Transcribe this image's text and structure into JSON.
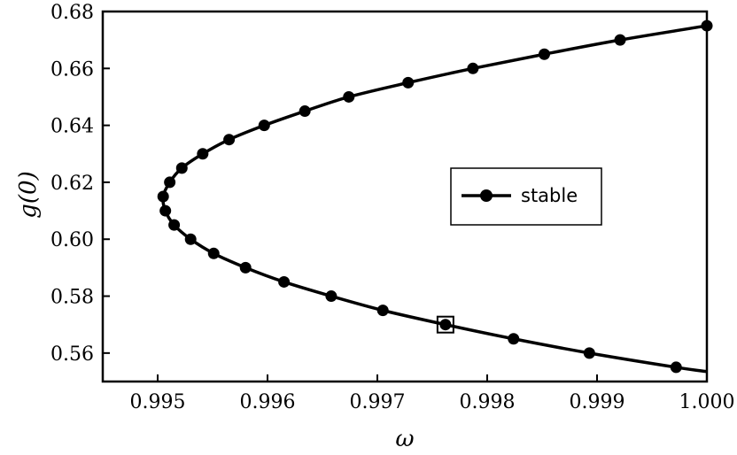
{
  "chart_data": {
    "type": "line",
    "xlabel": "ω",
    "ylabel": "g(0)",
    "xlim": [
      0.9945,
      1.0
    ],
    "ylim": [
      0.55,
      0.68
    ],
    "xticks": [
      "0.995",
      "0.996",
      "0.997",
      "0.998",
      "0.999",
      "1.000"
    ],
    "yticks": [
      "0.56",
      "0.58",
      "0.60",
      "0.62",
      "0.64",
      "0.66",
      "0.68"
    ],
    "grid": false,
    "legend_position": "center-right",
    "series": [
      {
        "name": "stable",
        "color": "#000000",
        "marker": "circle",
        "points": [
          [
            1.0,
            0.675
          ],
          [
            0.99921,
            0.67
          ],
          [
            0.99852,
            0.665
          ],
          [
            0.99787,
            0.66
          ],
          [
            0.99728,
            0.655
          ],
          [
            0.99674,
            0.65
          ],
          [
            0.99634,
            0.645
          ],
          [
            0.99597,
            0.64
          ],
          [
            0.99565,
            0.635
          ],
          [
            0.99541,
            0.63
          ],
          [
            0.99522,
            0.625
          ],
          [
            0.99511,
            0.62
          ],
          [
            0.99505,
            0.615
          ],
          [
            0.99507,
            0.61
          ],
          [
            0.99515,
            0.605
          ],
          [
            0.9953,
            0.6
          ],
          [
            0.99551,
            0.595
          ],
          [
            0.9958,
            0.59
          ],
          [
            0.99615,
            0.585
          ],
          [
            0.99658,
            0.58
          ],
          [
            0.99705,
            0.575
          ],
          [
            0.99762,
            0.57
          ],
          [
            0.99824,
            0.565
          ],
          [
            0.99893,
            0.56
          ],
          [
            0.99972,
            0.555
          ]
        ],
        "curve_extends_to": [
          1.0,
          0.5535
        ]
      }
    ],
    "highlighted_point": [
      0.99762,
      0.57
    ]
  }
}
